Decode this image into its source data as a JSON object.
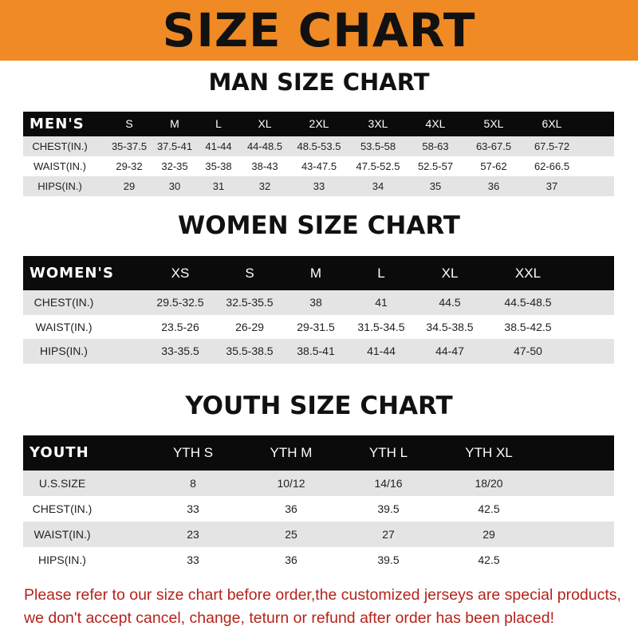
{
  "banner": {
    "title": "SIZE CHART",
    "color": "#f08a24"
  },
  "men": {
    "title": "MAN SIZE CHART",
    "header": [
      "MEN'S",
      "S",
      "M",
      "L",
      "XL",
      "2XL",
      "3XL",
      "4XL",
      "5XL",
      "6XL"
    ],
    "rows": [
      [
        "CHEST(IN.)",
        "35-37.5",
        "37.5-41",
        "41-44",
        "44-48.5",
        "48.5-53.5",
        "53.5-58",
        "58-63",
        "63-67.5",
        "67.5-72"
      ],
      [
        "WAIST(IN.)",
        "29-32",
        "32-35",
        "35-38",
        "38-43",
        "43-47.5",
        "47.5-52.5",
        "52.5-57",
        "57-62",
        "62-66.5"
      ],
      [
        "HIPS(IN.)",
        "29",
        "30",
        "31",
        "32",
        "33",
        "34",
        "35",
        "36",
        "37"
      ]
    ]
  },
  "women": {
    "title": "WOMEN SIZE CHART",
    "header": [
      "WOMEN'S",
      "XS",
      "S",
      "M",
      "L",
      "XL",
      "XXL"
    ],
    "rows": [
      [
        "CHEST(IN.)",
        "29.5-32.5",
        "32.5-35.5",
        "38",
        "41",
        "44.5",
        "44.5-48.5"
      ],
      [
        "WAIST(IN.)",
        "23.5-26",
        "26-29",
        "29-31.5",
        "31.5-34.5",
        "34.5-38.5",
        "38.5-42.5"
      ],
      [
        "HIPS(IN.)",
        "33-35.5",
        "35.5-38.5",
        "38.5-41",
        "41-44",
        "44-47",
        "47-50"
      ]
    ]
  },
  "youth": {
    "title": "YOUTH SIZE CHART",
    "header": [
      "YOUTH",
      "YTH S",
      "YTH M",
      "YTH L",
      "YTH XL"
    ],
    "rows": [
      [
        "U.S.SIZE",
        "8",
        "10/12",
        "14/16",
        "18/20"
      ],
      [
        "CHEST(IN.)",
        "33",
        "36",
        "39.5",
        "42.5"
      ],
      [
        "WAIST(IN.)",
        "23",
        "25",
        "27",
        "29"
      ],
      [
        "HIPS(IN.)",
        "33",
        "36",
        "39.5",
        "42.5"
      ]
    ]
  },
  "note": {
    "line1": "Please refer to our size chart before order,the customized jerseys are special products,",
    "line2": "we don't accept cancel, change, teturn or refund after order has been placed!",
    "color": "#b5231b"
  }
}
